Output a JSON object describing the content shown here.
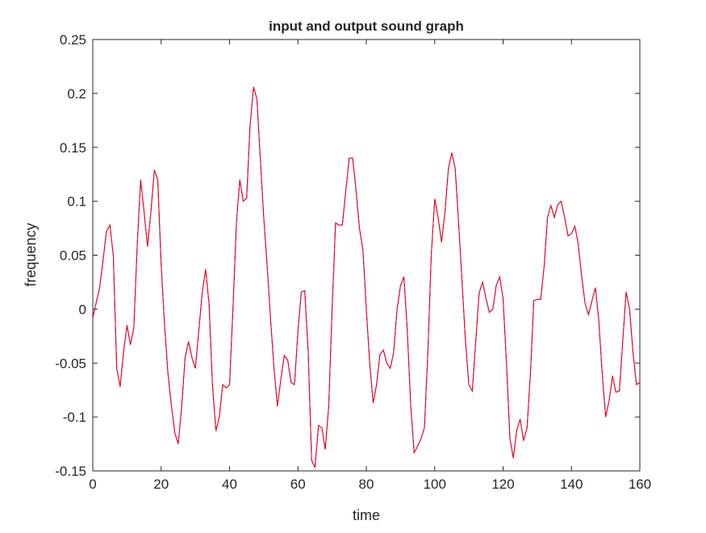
{
  "chart_data": {
    "type": "line",
    "title": "input and output sound graph",
    "xlabel": "time",
    "ylabel": "frequency",
    "xlim": [
      0,
      160
    ],
    "ylim": [
      -0.15,
      0.25
    ],
    "xticks": [
      0,
      20,
      40,
      60,
      80,
      100,
      120,
      140,
      160
    ],
    "yticks": [
      -0.15,
      -0.1,
      -0.05,
      0,
      0.05,
      0.1,
      0.15,
      0.2,
      0.25
    ],
    "ytick_labels": [
      "-0.15",
      "-0.1",
      "-0.05",
      "0",
      "0.05",
      "0.1",
      "0.15",
      "0.2",
      "0.25"
    ],
    "grid": false,
    "legend": "none",
    "x": [
      0,
      1,
      2,
      3,
      4,
      5,
      6,
      7,
      8,
      9,
      10,
      11,
      12,
      13,
      14,
      15,
      16,
      17,
      18,
      19,
      20,
      21,
      22,
      23,
      24,
      25,
      26,
      27,
      28,
      29,
      30,
      31,
      32,
      33,
      34,
      35,
      36,
      37,
      38,
      39,
      40,
      41,
      42,
      43,
      44,
      45,
      46,
      47,
      48,
      49,
      50,
      51,
      52,
      53,
      54,
      55,
      56,
      57,
      58,
      59,
      60,
      61,
      62,
      63,
      64,
      65,
      66,
      67,
      68,
      69,
      70,
      71,
      72,
      73,
      74,
      75,
      76,
      77,
      78,
      79,
      80,
      81,
      82,
      83,
      84,
      85,
      86,
      87,
      88,
      89,
      90,
      91,
      92,
      93,
      94,
      95,
      96,
      97,
      98,
      99,
      100,
      101,
      102,
      103,
      104,
      105,
      106,
      107,
      108,
      109,
      110,
      111,
      112,
      113,
      114,
      115,
      116,
      117,
      118,
      119,
      120,
      121,
      122,
      123,
      124,
      125,
      126,
      127,
      128,
      129,
      130,
      131,
      132,
      133,
      134,
      135,
      136,
      137,
      138,
      139,
      140,
      141,
      142,
      143,
      144,
      145,
      146,
      147,
      148,
      149,
      150,
      151,
      152,
      153,
      154,
      155,
      156,
      157,
      158,
      159,
      160
    ],
    "series": [
      {
        "color": "#0000ff",
        "values": [
          -0.008,
          0.006,
          0.02,
          0.045,
          0.072,
          0.078,
          0.05,
          -0.055,
          -0.072,
          -0.04,
          -0.015,
          -0.033,
          -0.018,
          0.06,
          0.12,
          0.09,
          0.058,
          0.09,
          0.129,
          0.12,
          0.04,
          -0.015,
          -0.06,
          -0.09,
          -0.115,
          -0.125,
          -0.09,
          -0.045,
          -0.03,
          -0.045,
          -0.055,
          -0.02,
          0.015,
          0.037,
          0.005,
          -0.07,
          -0.113,
          -0.1,
          -0.07,
          -0.073,
          -0.07,
          0.0,
          0.08,
          0.12,
          0.1,
          0.103,
          0.17,
          0.206,
          0.195,
          0.14,
          0.085,
          0.04,
          -0.01,
          -0.055,
          -0.09,
          -0.065,
          -0.043,
          -0.047,
          -0.068,
          -0.07,
          -0.02,
          0.016,
          0.017,
          -0.04,
          -0.14,
          -0.147,
          -0.108,
          -0.11,
          -0.13,
          -0.09,
          0.0,
          0.08,
          0.078,
          0.078,
          0.11,
          0.14,
          0.14,
          0.11,
          0.075,
          0.055,
          0.0,
          -0.05,
          -0.087,
          -0.07,
          -0.042,
          -0.038,
          -0.05,
          -0.055,
          -0.04,
          0.0,
          0.022,
          0.03,
          -0.02,
          -0.09,
          -0.133,
          -0.127,
          -0.12,
          -0.11,
          -0.04,
          0.05,
          0.102,
          0.085,
          0.062,
          0.09,
          0.13,
          0.145,
          0.13,
          0.08,
          0.025,
          -0.03,
          -0.07,
          -0.076,
          -0.03,
          0.015,
          0.025,
          0.01,
          -0.003,
          0.0,
          0.022,
          0.03,
          0.01,
          -0.05,
          -0.12,
          -0.138,
          -0.112,
          -0.102,
          -0.122,
          -0.11,
          -0.06,
          0.008,
          0.009,
          0.009,
          0.04,
          0.085,
          0.096,
          0.085,
          0.097,
          0.1,
          0.085,
          0.068,
          0.07,
          0.077,
          0.06,
          0.03,
          0.005,
          -0.005,
          0.008,
          0.02,
          -0.01,
          -0.06,
          -0.1,
          -0.085,
          -0.062,
          -0.077,
          -0.076,
          -0.03,
          0.016,
          0.0,
          -0.04,
          -0.07,
          -0.068
        ]
      },
      {
        "color": "#ff0000",
        "values": [
          -0.008,
          0.006,
          0.02,
          0.045,
          0.072,
          0.078,
          0.05,
          -0.055,
          -0.072,
          -0.04,
          -0.015,
          -0.033,
          -0.018,
          0.06,
          0.12,
          0.09,
          0.058,
          0.09,
          0.129,
          0.12,
          0.04,
          -0.015,
          -0.06,
          -0.09,
          -0.115,
          -0.125,
          -0.09,
          -0.045,
          -0.03,
          -0.045,
          -0.055,
          -0.02,
          0.015,
          0.037,
          0.005,
          -0.07,
          -0.113,
          -0.1,
          -0.07,
          -0.073,
          -0.07,
          0.0,
          0.08,
          0.12,
          0.1,
          0.103,
          0.17,
          0.206,
          0.195,
          0.14,
          0.085,
          0.04,
          -0.01,
          -0.055,
          -0.09,
          -0.065,
          -0.043,
          -0.047,
          -0.068,
          -0.07,
          -0.02,
          0.016,
          0.017,
          -0.04,
          -0.14,
          -0.147,
          -0.108,
          -0.11,
          -0.13,
          -0.09,
          0.0,
          0.08,
          0.078,
          0.078,
          0.11,
          0.14,
          0.14,
          0.11,
          0.075,
          0.055,
          0.0,
          -0.05,
          -0.087,
          -0.07,
          -0.042,
          -0.038,
          -0.05,
          -0.055,
          -0.04,
          0.0,
          0.022,
          0.03,
          -0.02,
          -0.09,
          -0.133,
          -0.127,
          -0.12,
          -0.11,
          -0.04,
          0.05,
          0.102,
          0.085,
          0.062,
          0.09,
          0.13,
          0.145,
          0.13,
          0.08,
          0.025,
          -0.03,
          -0.07,
          -0.076,
          -0.03,
          0.015,
          0.025,
          0.01,
          -0.003,
          0.0,
          0.022,
          0.03,
          0.01,
          -0.05,
          -0.12,
          -0.138,
          -0.112,
          -0.102,
          -0.122,
          -0.11,
          -0.06,
          0.008,
          0.009,
          0.009,
          0.04,
          0.085,
          0.096,
          0.085,
          0.097,
          0.1,
          0.085,
          0.068,
          0.07,
          0.077,
          0.06,
          0.03,
          0.005,
          -0.005,
          0.008,
          0.02,
          -0.01,
          -0.06,
          -0.1,
          -0.085,
          -0.062,
          -0.077,
          -0.076,
          -0.03,
          0.016,
          0.0,
          -0.04,
          -0.07,
          -0.068
        ]
      }
    ]
  }
}
